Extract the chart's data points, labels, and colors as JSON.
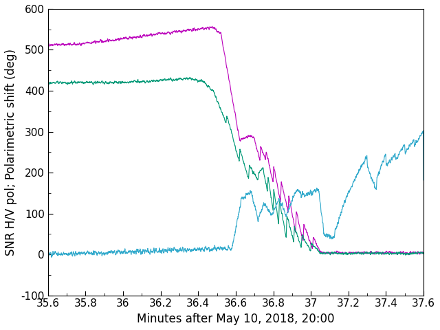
{
  "xlim": [
    35.6,
    37.6
  ],
  "ylim": [
    -100,
    600
  ],
  "xlabel": "Minutes after May 10, 2018, 20:00",
  "ylabel": "SNR H/V pol; Polarimetric shift (deg)",
  "xticks": [
    35.6,
    35.8,
    36.0,
    36.2,
    36.4,
    36.6,
    36.8,
    37.0,
    37.2,
    37.4,
    37.6
  ],
  "yticks": [
    -100,
    0,
    100,
    200,
    300,
    400,
    500,
    600
  ],
  "color_magenta": "#bb00bb",
  "color_teal": "#009977",
  "color_cyan": "#33aacc",
  "bg_color": "#ffffff",
  "linewidth": 0.8,
  "xlabel_fontsize": 12,
  "ylabel_fontsize": 12,
  "tick_fontsize": 11
}
